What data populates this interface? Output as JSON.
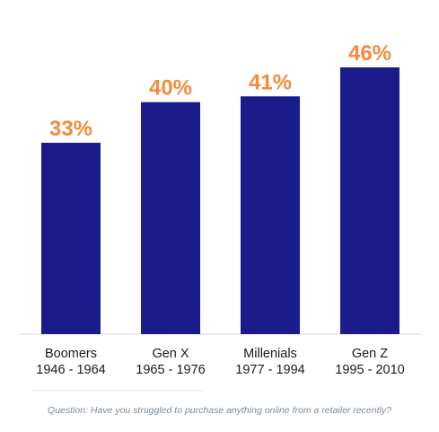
{
  "chart_data": {
    "type": "bar",
    "categories": [
      "Boomers",
      "Gen X",
      "Millenials",
      "Gen Z"
    ],
    "category_years": [
      "1946 - 1964",
      "1965 - 1976",
      "1977 - 1994",
      "1995 - 2010"
    ],
    "values": [
      33,
      40,
      41,
      46
    ],
    "value_labels": [
      "33%",
      "40%",
      "41%",
      "46%"
    ],
    "title": "",
    "xlabel": "",
    "ylabel": "",
    "ylim": [
      0,
      46
    ],
    "grid": false,
    "legend": "none",
    "colors": {
      "bar": "#1a1c8c",
      "value_label": "#f58a3c",
      "baseline": "#d9d9d9",
      "divider": "#e3e3e3"
    }
  },
  "footnote": "Question: Have you struggled to purchase anything online from a retailer recently?"
}
